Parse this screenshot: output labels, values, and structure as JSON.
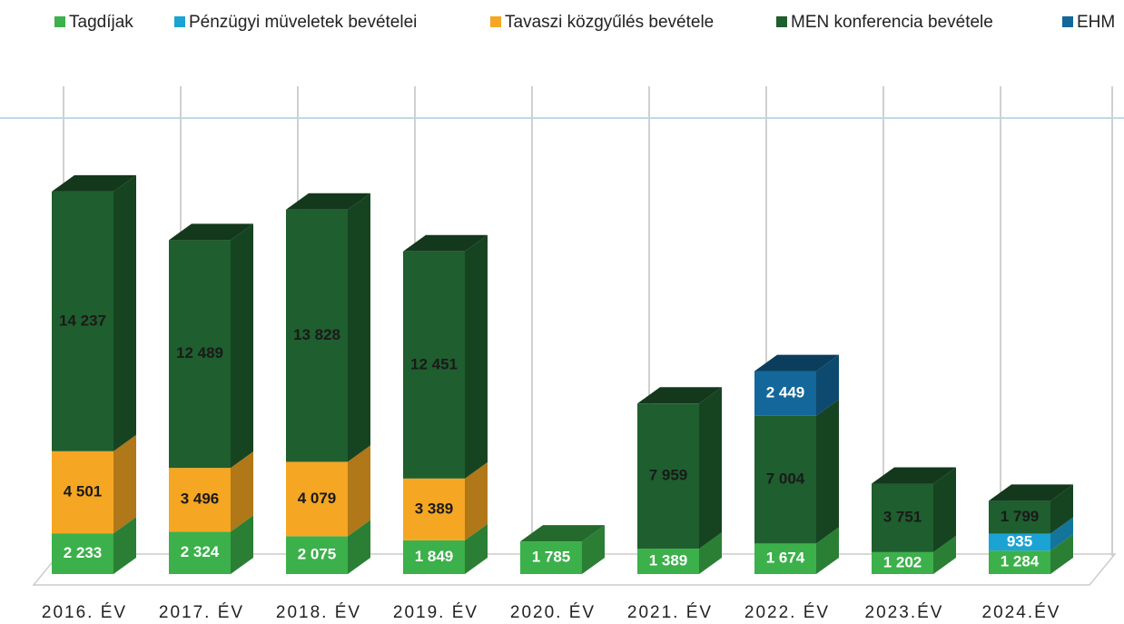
{
  "chart_data": {
    "type": "bar3d-stacked",
    "categories": [
      "2016. ÉV",
      "2017. ÉV",
      "2018. ÉV",
      "2019. ÉV",
      "2020. ÉV",
      "2021. ÉV",
      "2022. ÉV",
      "2023.ÉV",
      "2024.ÉV"
    ],
    "series": [
      {
        "name": "Tagdíjak",
        "color": "#3cb04a",
        "values": [
          2233,
          2324,
          2075,
          1849,
          1785,
          1389,
          1674,
          1202,
          1284
        ],
        "value_labels": [
          "2 233",
          "2 324",
          "2 075",
          "1 849",
          "1 785",
          "1 389",
          "1 674",
          "1 202",
          "1 284"
        ]
      },
      {
        "name": "Pénzügyi müveletek bevételei",
        "color": "#1ba3d4",
        "values": [
          null,
          null,
          null,
          null,
          null,
          null,
          null,
          null,
          935
        ],
        "value_labels": [
          null,
          null,
          null,
          null,
          null,
          null,
          null,
          null,
          "935"
        ]
      },
      {
        "name": "Tavaszi közgyűlés bevétele",
        "color": "#f5a623",
        "values": [
          4501,
          3496,
          4079,
          3389,
          null,
          null,
          null,
          null,
          null
        ],
        "value_labels": [
          "4 501",
          "3 496",
          "4 079",
          "3 389",
          null,
          null,
          null,
          null,
          null
        ]
      },
      {
        "name": "MEN konferencia bevétele",
        "color": "#1f5e2e",
        "values": [
          14237,
          12489,
          13828,
          12451,
          null,
          7959,
          7004,
          3751,
          1799
        ],
        "value_labels": [
          "14 237",
          "12 489",
          "13 828",
          "12 451",
          null,
          "7 959",
          "7 004",
          "3 751",
          "1 799"
        ]
      },
      {
        "name": "EHM",
        "color": "#13679a",
        "values": [
          null,
          null,
          null,
          null,
          null,
          null,
          2449,
          null,
          null
        ],
        "value_labels": [
          null,
          null,
          null,
          null,
          null,
          null,
          "2 449",
          null,
          null
        ]
      }
    ],
    "ylim": [
      0,
      25000
    ]
  }
}
